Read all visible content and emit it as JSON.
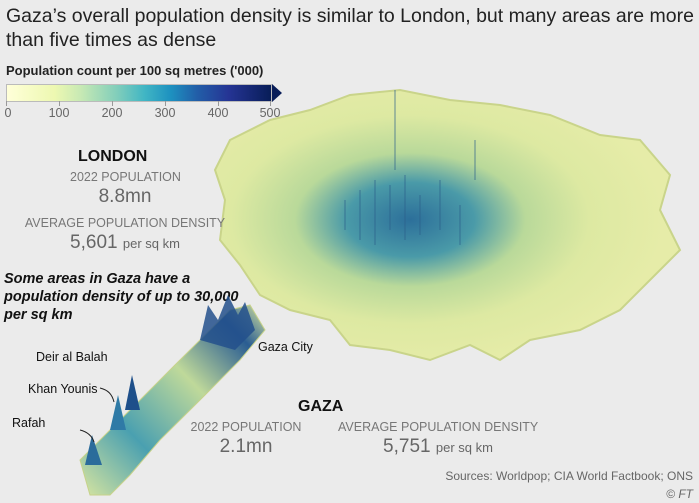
{
  "title": "Gaza’s overall population density is similar to London, but many areas are more than five times as dense",
  "legend": {
    "title": "Population count per 100 sq metres ('000)",
    "ticks": [
      "0",
      "100",
      "200",
      "300",
      "400",
      "500"
    ],
    "colors": [
      "#ffffd9",
      "#7fcdbb",
      "#1d91c0",
      "#253494",
      "#081d58"
    ]
  },
  "london": {
    "name": "LONDON",
    "population_label": "2022 POPULATION",
    "population": "8.8mn",
    "density_label": "AVERAGE POPULATION DENSITY",
    "density": "5,601",
    "density_unit": "per sq km"
  },
  "gaza": {
    "name": "GAZA",
    "population_label": "2022 POPULATION",
    "population": "2.1mn",
    "density_label": "AVERAGE POPULATION DENSITY",
    "density": "5,751",
    "density_unit": "per sq km",
    "note": "Some areas in Gaza have a population density of up to 30,000 per sq km",
    "places": [
      "Gaza City",
      "Deir al Balah",
      "Khan Younis",
      "Rafah"
    ]
  },
  "sources": "Sources: Worldpop; CIA World Factbook; ONS",
  "copyright": "© FT"
}
